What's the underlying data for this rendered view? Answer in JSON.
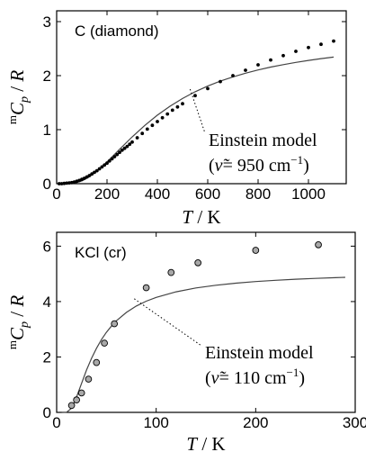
{
  "chart_data": [
    {
      "type": "line",
      "title": "C (diamond)",
      "xlabel_var": "T",
      "xlabel_unit": "K",
      "ylabel_sup": "m",
      "ylabel_var": "C",
      "ylabel_sub": "p",
      "ylabel_den": "R",
      "xlim": [
        0,
        1150
      ],
      "ylim": [
        0,
        3.2
      ],
      "xticks": [
        0,
        200,
        400,
        600,
        800,
        1000
      ],
      "yticks": [
        0,
        1,
        2,
        3
      ],
      "annotation_line1": "Einstein model",
      "annotation_nu": "ν̃",
      "annotation_value": "= 950 cm",
      "annotation_exp": "−1",
      "annotation_x": 530,
      "annotation_y": 1.75,
      "series": [
        {
          "kind": "curve",
          "x": [
            10,
            25,
            50,
            75,
            100,
            125,
            150,
            175,
            200,
            250,
            300,
            350,
            400,
            450,
            500,
            550,
            600,
            650,
            700,
            750,
            800,
            850,
            900,
            950,
            1000,
            1050,
            1100
          ],
          "y": [
            0.0,
            0.0,
            0.001,
            0.014,
            0.05,
            0.113,
            0.196,
            0.295,
            0.404,
            0.637,
            0.866,
            1.079,
            1.268,
            1.434,
            1.577,
            1.701,
            1.807,
            1.898,
            1.977,
            2.045,
            2.105,
            2.158,
            2.204,
            2.245,
            2.282,
            2.315,
            2.344
          ]
        },
        {
          "kind": "points",
          "x": [
            10,
            20,
            30,
            40,
            50,
            60,
            70,
            80,
            90,
            100,
            110,
            120,
            130,
            140,
            150,
            160,
            170,
            180,
            190,
            200,
            210,
            220,
            230,
            240,
            250,
            260,
            270,
            280,
            290,
            300,
            320,
            340,
            360,
            380,
            400,
            420,
            440,
            460,
            480,
            500,
            550,
            600,
            650,
            700,
            750,
            800,
            850,
            900,
            950,
            1000,
            1050,
            1100
          ],
          "y": [
            0.0,
            0.0,
            0.005,
            0.01,
            0.015,
            0.02,
            0.03,
            0.045,
            0.06,
            0.08,
            0.1,
            0.125,
            0.15,
            0.18,
            0.21,
            0.24,
            0.275,
            0.31,
            0.345,
            0.38,
            0.42,
            0.46,
            0.5,
            0.54,
            0.58,
            0.62,
            0.655,
            0.69,
            0.73,
            0.77,
            0.85,
            0.93,
            1.01,
            1.08,
            1.15,
            1.22,
            1.29,
            1.36,
            1.42,
            1.48,
            1.63,
            1.76,
            1.89,
            2.0,
            2.1,
            2.2,
            2.29,
            2.37,
            2.45,
            2.52,
            2.58,
            2.64
          ]
        }
      ]
    },
    {
      "type": "scatter",
      "title": "KCl (cr)",
      "xlabel_var": "T",
      "xlabel_unit": "K",
      "ylabel_sup": "m",
      "ylabel_var": "C",
      "ylabel_sub": "p",
      "ylabel_den": "R",
      "xlim": [
        0,
        300
      ],
      "ylim": [
        0,
        6.5
      ],
      "xticks": [
        0,
        100,
        200,
        300
      ],
      "yticks": [
        0,
        2,
        4,
        6
      ],
      "annotation_line1": "Einstein model",
      "annotation_nu": "ν̃",
      "annotation_value": "= 110 cm",
      "annotation_exp": "−1",
      "annotation_x": 78,
      "annotation_y": 4.1,
      "series": [
        {
          "kind": "curve",
          "x": [
            5,
            10,
            15,
            20,
            25,
            30,
            35,
            40,
            45,
            50,
            55,
            60,
            70,
            80,
            90,
            100,
            120,
            140,
            160,
            180,
            200,
            220,
            240,
            260,
            280,
            290
          ],
          "y": [
            0.0,
            0.006,
            0.148,
            0.552,
            1.045,
            1.526,
            1.947,
            2.315,
            2.626,
            2.89,
            3.114,
            3.305,
            3.609,
            3.837,
            4.013,
            4.151,
            4.351,
            4.49,
            4.589,
            4.664,
            4.722,
            4.768,
            4.806,
            4.837,
            4.862,
            4.874
          ]
        },
        {
          "kind": "points",
          "x": [
            15,
            20,
            25,
            32,
            40,
            48,
            58,
            90,
            115,
            142,
            200,
            263
          ],
          "y": [
            0.25,
            0.45,
            0.7,
            1.2,
            1.8,
            2.5,
            3.2,
            4.5,
            5.05,
            5.4,
            5.85,
            6.05
          ]
        }
      ]
    }
  ]
}
